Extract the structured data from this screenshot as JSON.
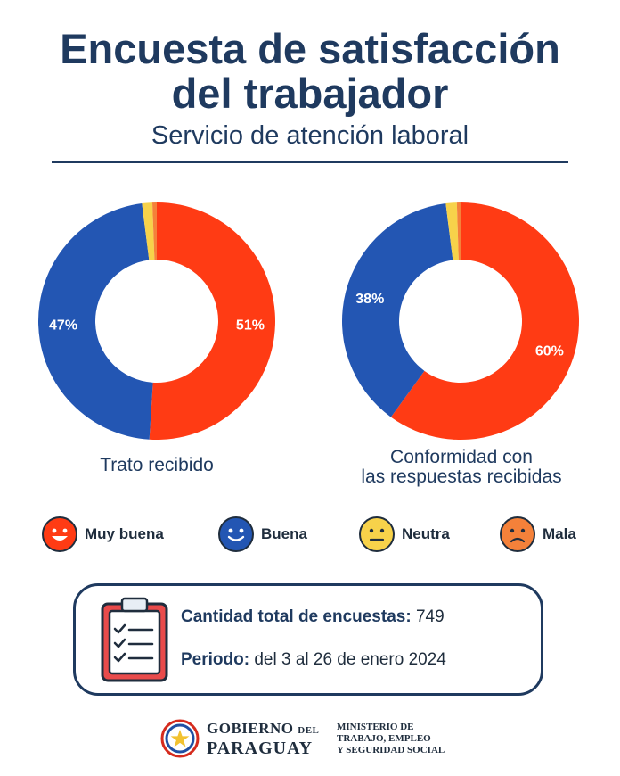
{
  "header": {
    "title_line1": "Encuesta de satisfacción",
    "title_line2": "del trabajador",
    "subtitle": "Servicio de atención laboral"
  },
  "colors": {
    "muy_buena": "#ff3b14",
    "buena": "#2356b3",
    "neutra": "#f7d24a",
    "mala": "#f4813a",
    "text": "#1f3a5f"
  },
  "chart_data": [
    {
      "type": "pie",
      "title": "Trato recibido",
      "categories": [
        "Muy buena",
        "Buena",
        "Neutra",
        "Mala"
      ],
      "values": [
        51,
        47,
        1.4,
        0.6
      ],
      "data_labels": [
        "51%",
        "47%",
        "",
        ""
      ],
      "legend": "bottom"
    },
    {
      "type": "pie",
      "title": "Conformidad con las respuestas recibidas",
      "categories": [
        "Muy buena",
        "Buena",
        "Neutra",
        "Mala"
      ],
      "values": [
        60,
        38,
        1.5,
        0.5
      ],
      "data_labels": [
        "60%",
        "38%",
        "",
        ""
      ],
      "legend": "bottom"
    }
  ],
  "charts_text": {
    "c1_line1": "Trato recibido",
    "c2_line1": "Conformidad con",
    "c2_line2": "las respuestas recibidas"
  },
  "legend": [
    {
      "label": "Muy buena",
      "icon": "happy-face-icon"
    },
    {
      "label": "Buena",
      "icon": "smile-face-icon"
    },
    {
      "label": "Neutra",
      "icon": "neutral-face-icon"
    },
    {
      "label": "Mala",
      "icon": "sad-face-icon"
    }
  ],
  "info": {
    "total_label": "Cantidad total de encuestas:",
    "total_value": "749",
    "period_label": "Periodo:",
    "period_value": "del 3 al 26 de enero 2024"
  },
  "footer": {
    "gob_line1": "GOBIERNO",
    "gob_del": "DEL",
    "gob_line2": "PARAGUAY",
    "min_line1": "MINISTERIO DE",
    "min_line2": "TRABAJO, EMPLEO",
    "min_line3": "Y SEGURIDAD SOCIAL"
  }
}
